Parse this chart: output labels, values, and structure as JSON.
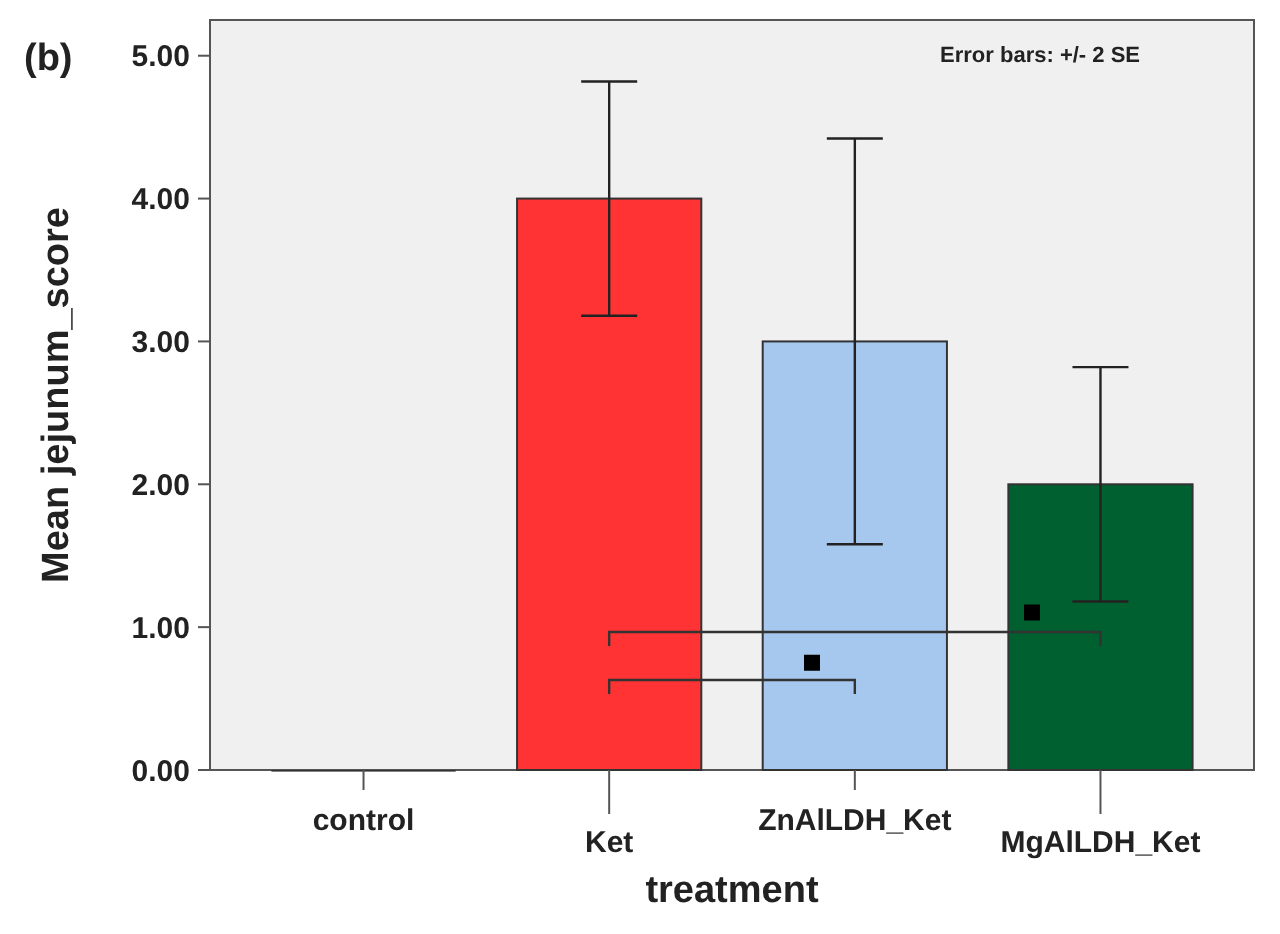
{
  "chart_data": {
    "type": "bar",
    "xlabel": "treatment",
    "ylabel": "Mean jejunum_score",
    "categories": [
      "control",
      "Ket",
      "ZnAlLDH_Ket",
      "MgAlLDH_Ket"
    ],
    "values": [
      0,
      4,
      3,
      2
    ],
    "colors": [
      "#333333",
      "#ff3333",
      "#a6c8ee",
      "#006030"
    ],
    "errors": [
      null,
      [
        3.18,
        4.82
      ],
      [
        1.58,
        4.42
      ],
      [
        1.18,
        2.82
      ]
    ],
    "ylim": [
      0,
      5.25
    ],
    "yticks": [
      {
        "value": 0,
        "label": "0.00"
      },
      {
        "value": 1,
        "label": "1.00"
      },
      {
        "value": 2,
        "label": "2.00"
      },
      {
        "value": 3,
        "label": "3.00"
      },
      {
        "value": 4,
        "label": "4.00"
      },
      {
        "value": 5,
        "label": "5.00"
      }
    ],
    "annotations": [
      "(b)",
      "Error bars: +/- 2 SE"
    ],
    "grid": false
  }
}
